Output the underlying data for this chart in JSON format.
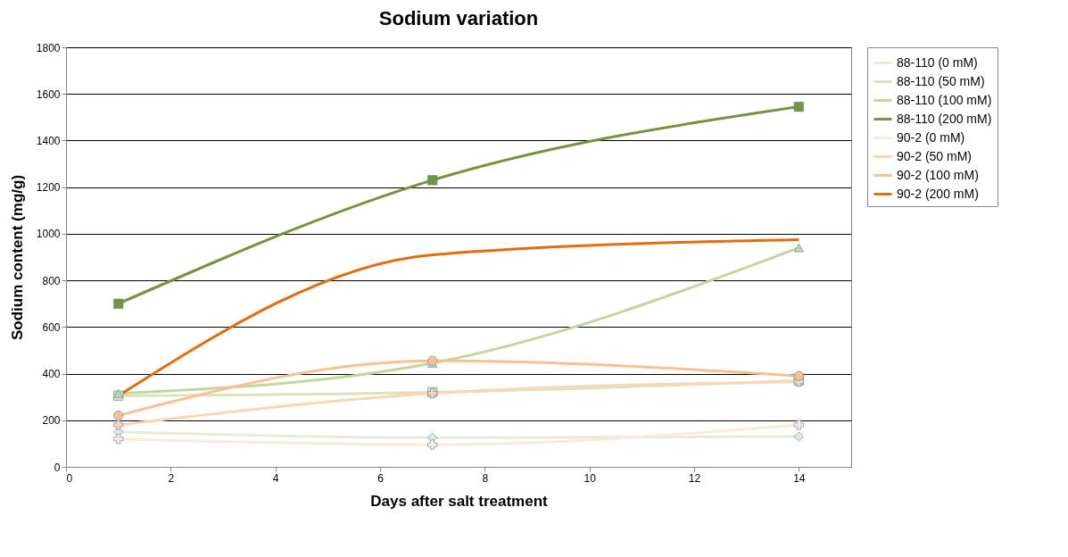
{
  "chart_data": {
    "type": "line",
    "title": "Sodium variation",
    "xlabel": "Days after salt treatment",
    "ylabel": "Sodium content (mg/g)",
    "x": [
      1,
      7,
      14
    ],
    "xlim": [
      0,
      15
    ],
    "xticks": [
      0,
      2,
      4,
      6,
      8,
      10,
      12,
      14
    ],
    "ylim": [
      0,
      1800
    ],
    "yticks": [
      0,
      200,
      400,
      600,
      800,
      1000,
      1200,
      1400,
      1600,
      1800
    ],
    "grid": "y",
    "legend": "right",
    "series": [
      {
        "name": "88-110 (0 mM)",
        "color": "#e4ecd8",
        "marker": "diamond",
        "values": [
          150,
          125,
          130
        ]
      },
      {
        "name": "88-110 (50 mM)",
        "color": "#d7e4bd",
        "marker": "square",
        "values": [
          305,
          320,
          370
        ]
      },
      {
        "name": "88-110 (100 mM)",
        "color": "#c3d69b",
        "marker": "triangle",
        "values": [
          315,
          445,
          940
        ]
      },
      {
        "name": "88-110 (200 mM)",
        "color": "#77933c",
        "marker": "square",
        "values": [
          700,
          1230,
          1545
        ]
      },
      {
        "name": "90-2 (0 mM)",
        "color": "#fde9d9",
        "marker": "cross",
        "values": [
          120,
          95,
          180
        ]
      },
      {
        "name": "90-2 (50 mM)",
        "color": "#fcd5b5",
        "marker": "cross",
        "values": [
          180,
          315,
          365
        ]
      },
      {
        "name": "90-2 (100 mM)",
        "color": "#fac090",
        "marker": "circle",
        "values": [
          220,
          455,
          390
        ]
      },
      {
        "name": "90-2 (200 mM)",
        "color": "#e46c0a",
        "marker": "none",
        "values": [
          305,
          910,
          975
        ]
      }
    ]
  }
}
